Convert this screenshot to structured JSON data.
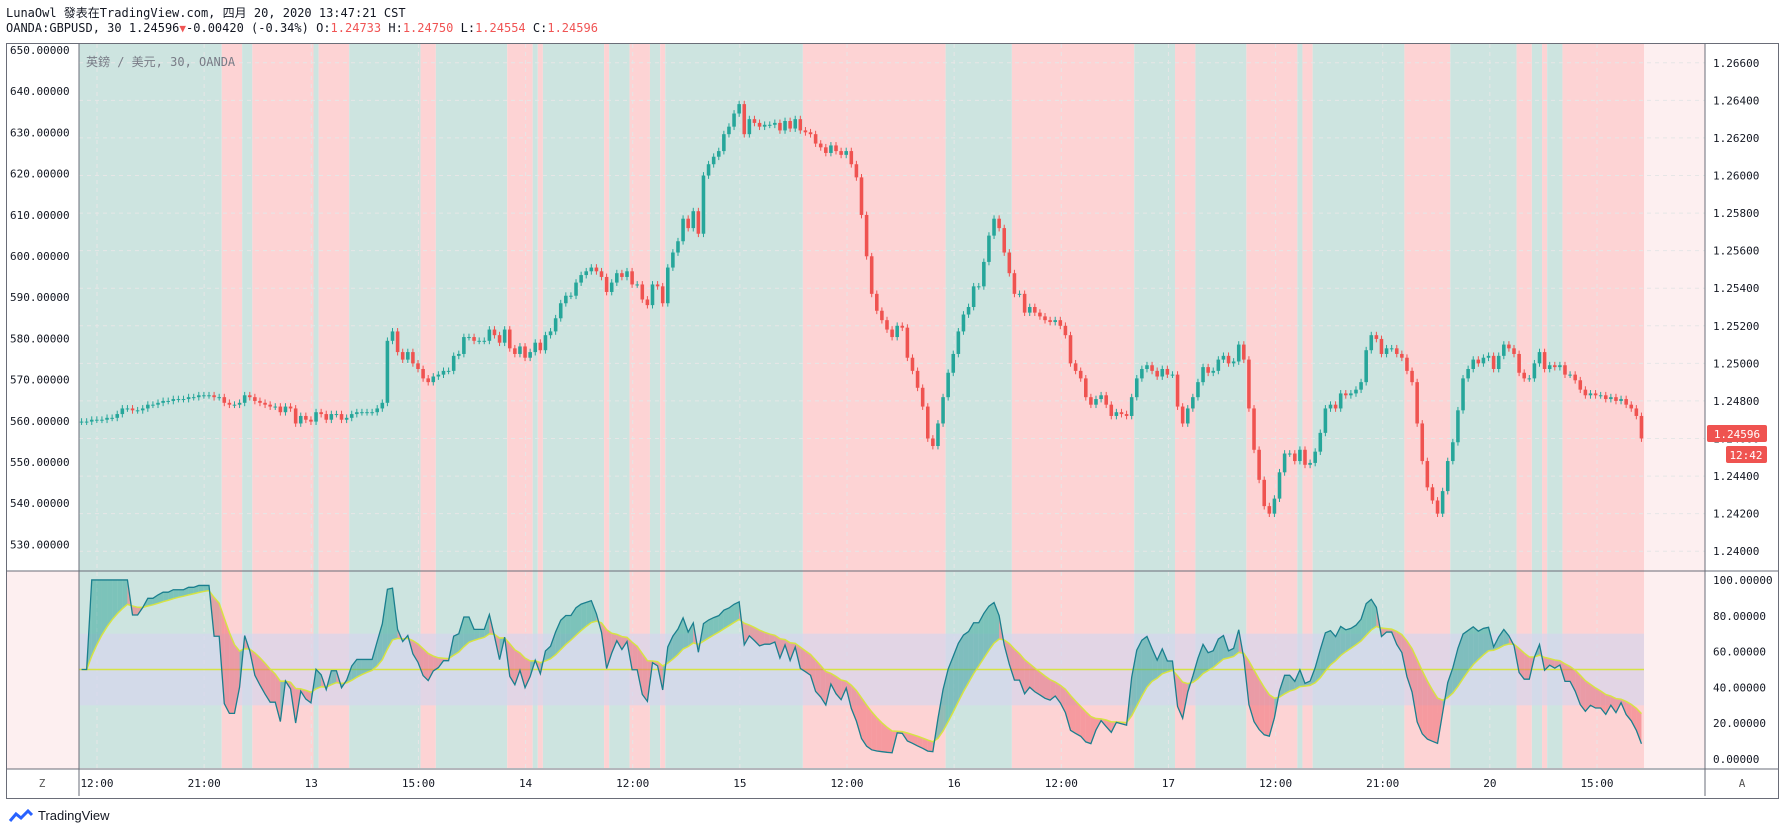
{
  "header": {
    "line1": "LunaOwl 發表在TradingView.com, 四月 20, 2020 13:47:21 CST",
    "symbol": "OANDA:GBPUSD, 30",
    "last": "1.24596",
    "down_arrow": "▼",
    "change": "-0.00420 (-0.34%)",
    "o_label": "O:",
    "o_val": "1.24733",
    "h_label": "H:",
    "h_val": "1.24750",
    "l_label": "L:",
    "l_val": "1.24554",
    "c_label": "C:",
    "c_val": "1.24596"
  },
  "watermark": "英鎊 / 美元, 30, OANDA",
  "price_badge": "1.24596",
  "time_badge": "12:42",
  "z_button": "Z",
  "a_button": "A",
  "footer_brand": "TradingView",
  "colors": {
    "bull": "#26a69a",
    "bear": "#ef5350",
    "bg_green": "#cde4e0",
    "bg_red": "#fdd3d4",
    "osc_band": "#d6d6ec",
    "yellow": "#d6e343"
  },
  "chart_data": [
    {
      "type": "candlestick",
      "title": "",
      "left_axis_ticks": [
        "650.00000",
        "640.00000",
        "630.00000",
        "620.00000",
        "610.00000",
        "600.00000",
        "590.00000",
        "580.00000",
        "570.00000",
        "560.00000",
        "550.00000",
        "540.00000",
        "530.00000"
      ],
      "right_axis_ticks": [
        "1.26600",
        "1.26400",
        "1.26200",
        "1.26000",
        "1.25800",
        "1.25600",
        "1.25400",
        "1.25200",
        "1.25000",
        "1.24800",
        "1.24600",
        "1.24400",
        "1.24200",
        "1.24000"
      ],
      "ylim": [
        1.239,
        1.267
      ],
      "x_labels": [
        "12:00",
        "21:00",
        "13",
        "15:00",
        "14",
        "12:00",
        "15",
        "12:00",
        "16",
        "12:00",
        "17",
        "12:00",
        "21:00",
        "20",
        "15:00"
      ],
      "closes": [
        1.2469,
        1.2469,
        1.247,
        1.247,
        1.247,
        1.2471,
        1.2471,
        1.2473,
        1.2476,
        1.2476,
        1.2475,
        1.2475,
        1.2476,
        1.2478,
        1.2478,
        1.2479,
        1.248,
        1.248,
        1.2481,
        1.2481,
        1.2481,
        1.2482,
        1.2482,
        1.2483,
        1.2483,
        1.2483,
        1.2482,
        1.2482,
        1.2479,
        1.2478,
        1.2478,
        1.2479,
        1.2483,
        1.2482,
        1.248,
        1.2479,
        1.2478,
        1.2477,
        1.2477,
        1.2474,
        1.2477,
        1.2476,
        1.2468,
        1.2472,
        1.247,
        1.2469,
        1.2474,
        1.2473,
        1.247,
        1.2473,
        1.2473,
        1.247,
        1.2471,
        1.2473,
        1.2474,
        1.2474,
        1.2474,
        1.2474,
        1.2476,
        1.2479,
        1.2512,
        1.2517,
        1.2506,
        1.2502,
        1.2506,
        1.25,
        1.2497,
        1.2492,
        1.249,
        1.2493,
        1.2494,
        1.2496,
        1.2496,
        1.2504,
        1.2505,
        1.2514,
        1.2514,
        1.2512,
        1.2512,
        1.2512,
        1.2518,
        1.2515,
        1.2511,
        1.2518,
        1.2508,
        1.2505,
        1.2509,
        1.2503,
        1.2506,
        1.2511,
        1.2507,
        1.2515,
        1.2517,
        1.2524,
        1.2532,
        1.2536,
        1.2536,
        1.2543,
        1.2547,
        1.2549,
        1.2551,
        1.2549,
        1.2546,
        1.2538,
        1.2543,
        1.2548,
        1.2546,
        1.2549,
        1.2542,
        1.2542,
        1.2534,
        1.2531,
        1.2542,
        1.2541,
        1.2532,
        1.2551,
        1.2559,
        1.2565,
        1.2577,
        1.2572,
        1.2581,
        1.2569,
        1.26,
        1.2606,
        1.261,
        1.2613,
        1.2622,
        1.2626,
        1.2633,
        1.2638,
        1.2622,
        1.263,
        1.2628,
        1.2626,
        1.2627,
        1.2627,
        1.2628,
        1.2624,
        1.2629,
        1.2625,
        1.263,
        1.2624,
        1.2623,
        1.2622,
        1.2617,
        1.2615,
        1.2612,
        1.2616,
        1.2613,
        1.2611,
        1.2613,
        1.2606,
        1.2599,
        1.2579,
        1.2557,
        1.2537,
        1.2528,
        1.2523,
        1.2518,
        1.2514,
        1.252,
        1.2519,
        1.2503,
        1.2496,
        1.2487,
        1.2477,
        1.246,
        1.2456,
        1.2468,
        1.2482,
        1.2495,
        1.2505,
        1.2517,
        1.2526,
        1.253,
        1.2541,
        1.2541,
        1.2554,
        1.2568,
        1.2577,
        1.2572,
        1.2559,
        1.2548,
        1.2537,
        1.2537,
        1.2527,
        1.253,
        1.2527,
        1.2525,
        1.2523,
        1.2522,
        1.2523,
        1.252,
        1.2515,
        1.25,
        1.2496,
        1.2492,
        1.2482,
        1.2478,
        1.2481,
        1.2483,
        1.2478,
        1.2472,
        1.2474,
        1.2473,
        1.2472,
        1.2482,
        1.2492,
        1.2497,
        1.2499,
        1.2496,
        1.2493,
        1.2497,
        1.2494,
        1.2494,
        1.2477,
        1.2468,
        1.2476,
        1.2482,
        1.249,
        1.2498,
        1.2495,
        1.2496,
        1.2502,
        1.2504,
        1.25,
        1.2501,
        1.251,
        1.2502,
        1.2476,
        1.2454,
        1.2438,
        1.2424,
        1.242,
        1.2428,
        1.2442,
        1.2452,
        1.2452,
        1.2448,
        1.2454,
        1.2446,
        1.2447,
        1.2453,
        1.2463,
        1.2476,
        1.2478,
        1.2476,
        1.2484,
        1.2483,
        1.2484,
        1.2486,
        1.249,
        1.2507,
        1.2515,
        1.2513,
        1.2505,
        1.2508,
        1.2508,
        1.2505,
        1.2503,
        1.2496,
        1.249,
        1.2468,
        1.2448,
        1.2434,
        1.2427,
        1.242,
        1.2432,
        1.2448,
        1.2458,
        1.2475,
        1.2492,
        1.2497,
        1.2502,
        1.25,
        1.2503,
        1.2504,
        1.2497,
        1.2504,
        1.251,
        1.2508,
        1.2505,
        1.2495,
        1.2492,
        1.2492,
        1.25,
        1.2506,
        1.2497,
        1.2499,
        1.2498,
        1.2499,
        1.2494,
        1.2494,
        1.2491,
        1.2486,
        1.2483,
        1.2484,
        1.2483,
        1.2483,
        1.2481,
        1.2482,
        1.248,
        1.2481,
        1.2478,
        1.2476,
        1.2472,
        1.246
      ]
    },
    {
      "type": "area",
      "title": "",
      "right_axis_ticks": [
        "100.00000",
        "80.00000",
        "60.00000",
        "40.00000",
        "20.00000",
        "0.00000"
      ],
      "ylim": [
        -5,
        105
      ],
      "band": [
        30,
        70
      ],
      "midline": 50
    }
  ]
}
